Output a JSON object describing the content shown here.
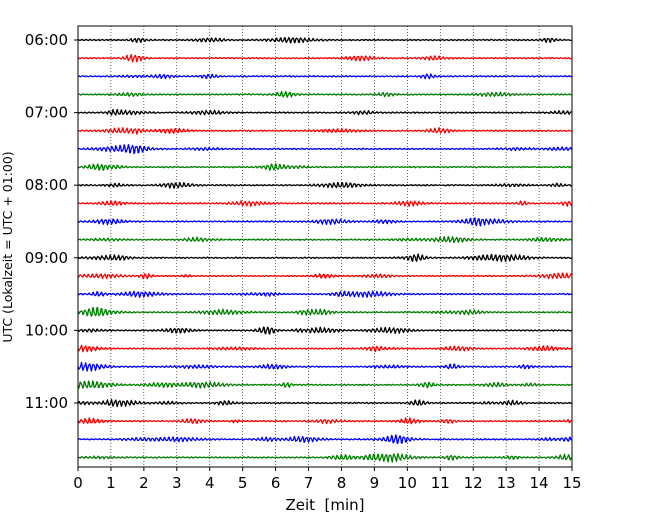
{
  "chart_data": {
    "type": "line",
    "title": "",
    "xlabel": "Zeit  [min]",
    "ylabel": "UTC (Lokalzeit = UTC + 01:00)",
    "xlim": [
      0,
      15
    ],
    "x_ticks": [
      0,
      1,
      2,
      3,
      4,
      5,
      6,
      7,
      8,
      9,
      10,
      11,
      12,
      13,
      14,
      15
    ],
    "y_tick_labels": [
      "06:00",
      "07:00",
      "08:00",
      "09:00",
      "10:00",
      "11:00"
    ],
    "grid": "vertical dotted at each minute",
    "legend": "none",
    "trace_colors": [
      "#000000",
      "#ff0000",
      "#0000ff",
      "#007f00"
    ],
    "series": [
      {
        "start": "06:00"
      },
      {
        "start": "06:15"
      },
      {
        "start": "06:30"
      },
      {
        "start": "06:45"
      },
      {
        "start": "07:00"
      },
      {
        "start": "07:15"
      },
      {
        "start": "07:30"
      },
      {
        "start": "07:45"
      },
      {
        "start": "08:00"
      },
      {
        "start": "08:15"
      },
      {
        "start": "08:30"
      },
      {
        "start": "08:45"
      },
      {
        "start": "09:00"
      },
      {
        "start": "09:15"
      },
      {
        "start": "09:30"
      },
      {
        "start": "09:45"
      },
      {
        "start": "10:00"
      },
      {
        "start": "10:15"
      },
      {
        "start": "10:30"
      },
      {
        "start": "10:45"
      },
      {
        "start": "11:00"
      },
      {
        "start": "11:15"
      },
      {
        "start": "11:30"
      },
      {
        "start": "11:45"
      }
    ]
  }
}
